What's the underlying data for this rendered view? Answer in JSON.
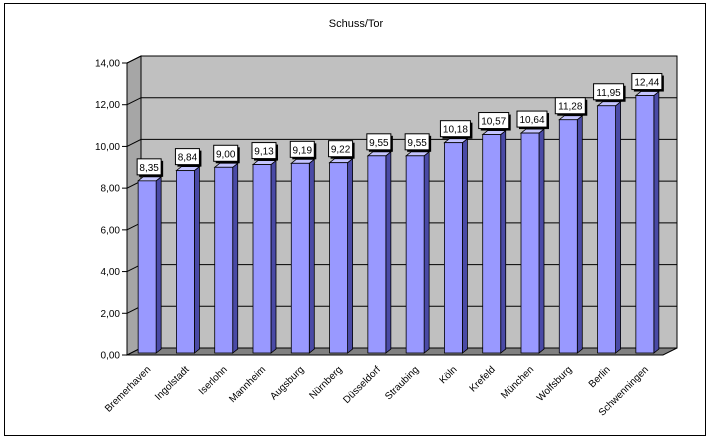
{
  "chart_data": {
    "type": "bar",
    "title": "Schuss/Tor",
    "xlabel": "",
    "ylabel": "",
    "categories": [
      "Bremerhaven",
      "Ingolstadt",
      "Iserlohn",
      "Mannheim",
      "Augsburg",
      "Nürnberg",
      "Düsseldorf",
      "Straubing",
      "Köln",
      "Krefeld",
      "München",
      "Wolfsburg",
      "Berlin",
      "Schwenningen"
    ],
    "values": [
      8.35,
      8.84,
      9.0,
      9.13,
      9.19,
      9.22,
      9.55,
      9.55,
      10.18,
      10.57,
      10.64,
      11.28,
      11.95,
      12.44
    ],
    "value_labels": [
      "8,35",
      "8,84",
      "9,00",
      "9,13",
      "9,19",
      "9,22",
      "9,55",
      "9,55",
      "10,18",
      "10,57",
      "10,64",
      "11,28",
      "11,95",
      "12,44"
    ],
    "y_ticks": [
      "0,00",
      "2,00",
      "4,00",
      "6,00",
      "8,00",
      "10,00",
      "12,00",
      "14,00"
    ],
    "ylim": [
      0,
      14
    ],
    "grid": true,
    "legend": "none",
    "colors": {
      "bar_front": "#9999ff",
      "bar_side": "#4a4aa6",
      "bar_top": "#c4c4ff",
      "wall": "#c0c0c0",
      "floor": "#808080",
      "gridline": "#000000",
      "label_box": "#ffffff"
    }
  }
}
